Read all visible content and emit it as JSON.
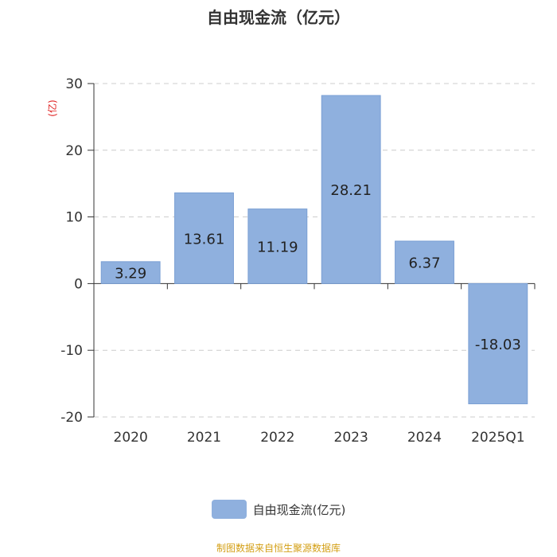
{
  "chart_data": {
    "type": "bar",
    "title": "自由现金流（亿元）",
    "ylabel": "(亿)",
    "categories": [
      "2020",
      "2021",
      "2022",
      "2023",
      "2024",
      "2025Q1"
    ],
    "series": [
      {
        "name": "自由现金流(亿元)",
        "values": [
          3.29,
          13.61,
          11.19,
          28.21,
          6.37,
          -18.03
        ],
        "data_labels": [
          "3.29",
          "13.61",
          "11.19",
          "28.21",
          "6.37",
          "-18.03"
        ]
      }
    ],
    "yticks": [
      30,
      20,
      10,
      0,
      -10,
      -20
    ],
    "ylim": [
      -20,
      30
    ],
    "grid": true,
    "legend_position": "bottom-center"
  },
  "source_note": "制图数据来自恒生聚源数据库",
  "colors": {
    "bar": "#8fb0de",
    "bar_border": "#7a9fd4",
    "axis": "#333333",
    "grid": "#cccccc",
    "ylabel": "#e02020",
    "source_note": "#d4a017"
  }
}
